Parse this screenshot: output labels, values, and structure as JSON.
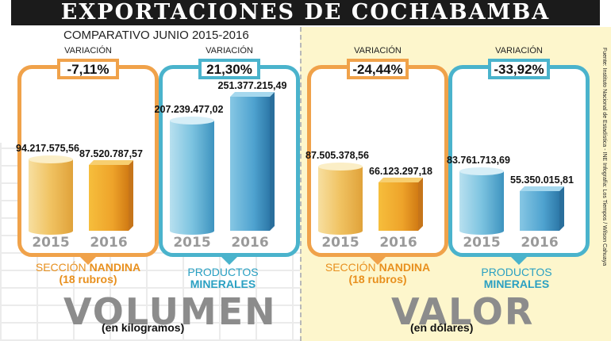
{
  "title": "EXPORTACIONES DE COCHABAMBA",
  "subtitle": "COMPARATIVO JUNIO 2015-2016",
  "variation_label": "VARIACIÓN",
  "sections": {
    "volumen": {
      "word": "VOLUMEN",
      "unit": "(en kilogramos)"
    },
    "valor": {
      "word": "VALOR",
      "unit": "(en dólares)"
    }
  },
  "categories": {
    "nandina": {
      "line1_a": "SECCIÓN",
      "line1_b": "NANDINA",
      "line2": "(18 rubros)"
    },
    "minerales": {
      "line1_a": "PRODUCTOS",
      "line1_b": "MINERALES"
    }
  },
  "source": "Fuente: Instituto Nacional de Estadística - INE     Infografía: Los Tiempos / Wilson Cahuaya",
  "colors": {
    "orange": "#f0a24a",
    "blue": "#4ab3cc",
    "orange_bar": "#f2c25e",
    "blue_bar": "#74bedc"
  },
  "chart_data": [
    {
      "type": "bar",
      "section": "VOLUMEN",
      "category": "SECCIÓN NANDINA (18 rubros)",
      "variation": "-7,11%",
      "categories": [
        "2015",
        "2016"
      ],
      "values": [
        94217575.56,
        87520787.57
      ],
      "labels": [
        "94.217.575,56",
        "87.520.787,57"
      ]
    },
    {
      "type": "bar",
      "section": "VOLUMEN",
      "category": "PRODUCTOS MINERALES",
      "variation": "21,30%",
      "categories": [
        "2015",
        "2016"
      ],
      "values": [
        207239477.02,
        251377215.49
      ],
      "labels": [
        "207.239.477,02",
        "251.377.215,49"
      ]
    },
    {
      "type": "bar",
      "section": "VALOR",
      "category": "SECCIÓN NANDINA (18 rubros)",
      "variation": "-24,44%",
      "categories": [
        "2015",
        "2016"
      ],
      "values": [
        87505378.56,
        66123297.18
      ],
      "labels": [
        "87.505.378,56",
        "66.123.297,18"
      ]
    },
    {
      "type": "bar",
      "section": "VALOR",
      "category": "PRODUCTOS MINERALES",
      "variation": "-33,92%",
      "categories": [
        "2015",
        "2016"
      ],
      "values": [
        83761713.69,
        55350015.81
      ],
      "labels": [
        "83.761.713,69",
        "55.350.015,81"
      ]
    }
  ]
}
